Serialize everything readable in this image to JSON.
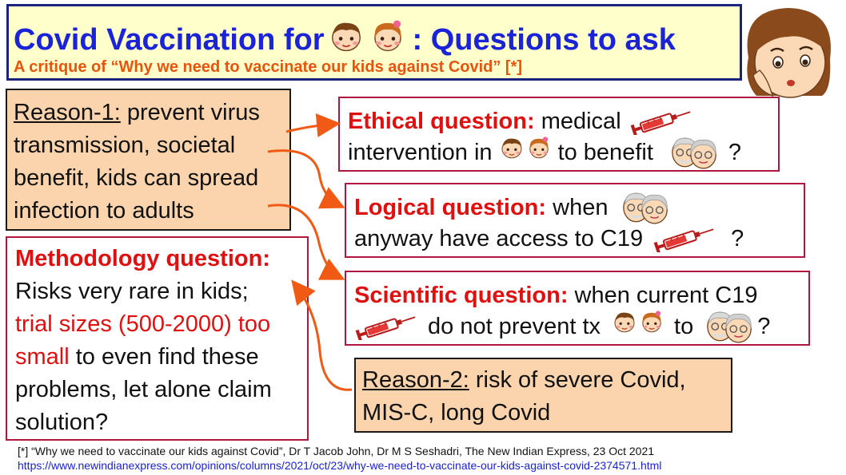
{
  "title": {
    "prefix": "Covid Vaccination for",
    "suffix": ": Questions to ask",
    "subtitle": "A critique of “Why we need to vaccinate our kids against Covid” [*]"
  },
  "reason1": {
    "label": "Reason-1:",
    "l1": "prevent virus",
    "l2": "transmission, societal",
    "l3": "benefit, kids can spread",
    "l4": "infection to adults"
  },
  "ethical": {
    "label": "Ethical question:",
    "t1": "medical",
    "t2": "intervention in",
    "t3": "to benefit",
    "t4": "?"
  },
  "logical": {
    "label": "Logical question:",
    "t1": "when",
    "t2": "anyway have access to C19",
    "t3": "?"
  },
  "scientific": {
    "label": "Scientific question:",
    "t1": "when current C19",
    "t2": "do not prevent tx",
    "t3": "to",
    "t4": "?"
  },
  "methodology": {
    "label": "Methodology question:",
    "l1": "Risks very rare in kids;",
    "l2_red": "trial sizes (500-2000) too",
    "l3_red": "small",
    "l3_rest": "to even find these",
    "l4": "problems, let alone claim",
    "l5": "solution?"
  },
  "reason2": {
    "label": "Reason-2:",
    "l1": "risk of severe Covid,",
    "l2": "MIS-C, long Covid"
  },
  "footnote": {
    "ref": "[*] “Why we need to vaccinate our kids against Covid”, Dr T Jacob John, Dr M S Seshadri, The New Indian Express, 23 Oct 2021",
    "url": "https://www.newindianexpress.com/opinions/columns/2021/oct/23/why-we-need-to-vaccinate-our-kids-against-covid-2374571.html"
  },
  "colors": {
    "title_blue": "#1a23d8",
    "subtitle_orange": "#e8530e",
    "question_red": "#e01010",
    "orange_box": "#fbd4ae",
    "arrow_orange": "#f05a14",
    "title_bg": "#ffffcc"
  },
  "icons": [
    "kids-icon",
    "elderly-couple-icon",
    "syringe-icon",
    "worried-woman-icon"
  ]
}
